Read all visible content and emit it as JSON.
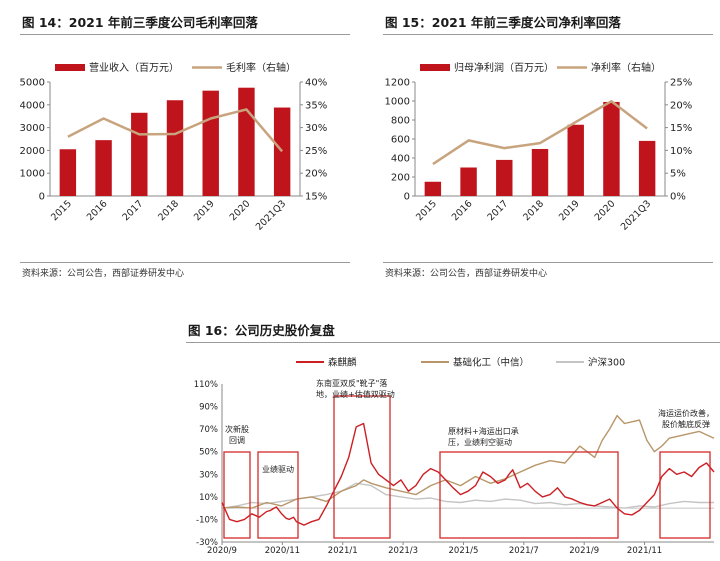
{
  "figures": {
    "fig14": {
      "title": "图 14：2021 年前三季度公司毛利率回落",
      "source": "资料来源：公司公告，西部证券研发中心"
    },
    "fig15": {
      "title": "图 15：2021 年前三季度公司净利率回落",
      "source": "资料来源：公司公告，西部证券研发中心"
    },
    "fig16": {
      "title": "图 16：公司历史股价复盘"
    }
  },
  "colors": {
    "bar": "#c0141c",
    "line": "#c8a47e",
    "series1": "#cc1f24",
    "series2": "#b8966a",
    "series3": "#c4c4c4",
    "box": "#d42a2a"
  },
  "chart_data": [
    {
      "type": "bar",
      "categories": [
        "2015",
        "2016",
        "2017",
        "2018",
        "2019",
        "2020",
        "2021Q3"
      ],
      "series": [
        {
          "name": "营业收入（百万元）",
          "type": "bar",
          "axis": "left",
          "values": [
            2050,
            2450,
            3650,
            4200,
            4620,
            4750,
            3880
          ]
        },
        {
          "name": "毛利率（右轴）",
          "type": "line",
          "axis": "right",
          "values": [
            28.0,
            32.0,
            28.5,
            28.6,
            32.0,
            34.0,
            24.8
          ]
        }
      ],
      "ylim": [
        0,
        5000
      ],
      "yticks": [
        "0",
        "1000",
        "2000",
        "3000",
        "4000",
        "5000"
      ],
      "y2lim": [
        15,
        40
      ],
      "y2ticks": [
        "15%",
        "20%",
        "25%",
        "30%",
        "35%",
        "40%"
      ],
      "legend_position": "top",
      "grid": false
    },
    {
      "type": "bar",
      "categories": [
        "2015",
        "2016",
        "2017",
        "2018",
        "2019",
        "2020",
        "2021Q3"
      ],
      "series": [
        {
          "name": "归母净利润（百万元）",
          "type": "bar",
          "axis": "left",
          "values": [
            150,
            300,
            380,
            495,
            750,
            990,
            580
          ]
        },
        {
          "name": "净利率（右轴）",
          "type": "line",
          "axis": "right",
          "values": [
            7.0,
            12.2,
            10.5,
            11.6,
            16.2,
            20.8,
            14.8
          ]
        }
      ],
      "ylim": [
        0,
        1200
      ],
      "yticks": [
        "0",
        "200",
        "400",
        "600",
        "800",
        "1000",
        "1200"
      ],
      "y2lim": [
        0,
        25
      ],
      "y2ticks": [
        "0%",
        "5%",
        "10%",
        "15%",
        "20%",
        "25%"
      ],
      "legend_position": "top",
      "grid": false
    },
    {
      "type": "line",
      "xticks": [
        "2020/9",
        "2020/11",
        "2021/1",
        "2021/3",
        "2021/5",
        "2021/7",
        "2021/9",
        "2021/11"
      ],
      "x_range": [
        "2020/9",
        "2021/12"
      ],
      "ylim": [
        -30,
        110
      ],
      "yticks": [
        "-30%",
        "-10%",
        "10%",
        "30%",
        "50%",
        "70%",
        "90%",
        "110%"
      ],
      "legend_position": "top",
      "series": [
        {
          "name": "森麒麟",
          "color": "#cc1f24",
          "x": [
            0,
            1,
            2,
            3,
            4,
            5,
            6,
            6.5,
            7,
            7.3,
            8,
            8.6,
            9,
            9.6,
            10,
            11,
            12,
            13,
            14,
            15,
            16,
            17,
            18,
            19,
            20,
            21,
            22,
            23,
            24,
            25,
            26,
            27,
            28,
            29,
            30,
            31,
            32,
            33,
            34,
            35,
            36,
            37,
            38,
            38.5,
            39,
            40,
            41,
            42,
            43,
            44,
            45,
            46,
            47,
            48,
            49,
            50,
            51,
            52,
            53,
            54,
            55,
            56,
            57,
            58,
            59,
            60,
            61,
            62,
            63,
            64,
            65,
            66
          ],
          "y": [
            5,
            -10,
            -12,
            -10,
            -5,
            -8,
            -3,
            -2,
            0,
            1,
            -5,
            -9,
            -10,
            -8,
            -12,
            -15,
            -12,
            -10,
            2,
            15,
            28,
            45,
            72,
            75,
            40,
            30,
            25,
            20,
            25,
            15,
            20,
            30,
            35,
            32,
            25,
            18,
            12,
            15,
            20,
            32,
            28,
            22,
            25,
            30,
            34,
            18,
            22,
            15,
            10,
            12,
            18,
            10,
            8,
            5,
            3,
            2,
            5,
            8,
            0,
            -5,
            -6,
            -2,
            5,
            12,
            28,
            35,
            30,
            32,
            28,
            36,
            40,
            32
          ]
        },
        {
          "name": "基础化工（中信）",
          "color": "#b8966a",
          "x": [
            0,
            2,
            4,
            6,
            8,
            10,
            12,
            14,
            16,
            18,
            19,
            20,
            22,
            24,
            26,
            28,
            30,
            32,
            34,
            36,
            38,
            40,
            42,
            44,
            46,
            48,
            50,
            51,
            52,
            53,
            54,
            56,
            57,
            58,
            59,
            60,
            62,
            64,
            66
          ],
          "y": [
            0,
            1,
            0,
            5,
            2,
            8,
            10,
            6,
            15,
            20,
            25,
            22,
            18,
            15,
            12,
            20,
            25,
            20,
            28,
            22,
            26,
            32,
            38,
            42,
            40,
            55,
            45,
            60,
            70,
            82,
            75,
            78,
            60,
            50,
            55,
            62,
            65,
            68,
            62
          ]
        },
        {
          "name": "沪深300",
          "color": "#c4c4c4",
          "x": [
            0,
            2,
            4,
            6,
            8,
            10,
            12,
            14,
            16,
            18,
            20,
            22,
            24,
            26,
            28,
            30,
            32,
            34,
            36,
            38,
            40,
            42,
            44,
            46,
            48,
            50,
            52,
            54,
            56,
            58,
            60,
            62,
            64,
            66
          ],
          "y": [
            0,
            2,
            5,
            4,
            6,
            8,
            10,
            12,
            15,
            22,
            20,
            12,
            10,
            8,
            9,
            6,
            5,
            7,
            6,
            8,
            7,
            4,
            5,
            3,
            4,
            2,
            1,
            0,
            2,
            1,
            4,
            6,
            5,
            5
          ]
        }
      ],
      "highlights": [
        {
          "label": "次新股\n回调"
        },
        {
          "label": "业绩驱动"
        },
        {
          "label": "东南亚双反\"靴子\"落\n地，业绩+估值双驱动"
        },
        {
          "label": "原材料+海运出口承\n压，业绩利空驱动"
        },
        {
          "label": "海运运价改善，\n股价触底反弹"
        }
      ]
    }
  ]
}
